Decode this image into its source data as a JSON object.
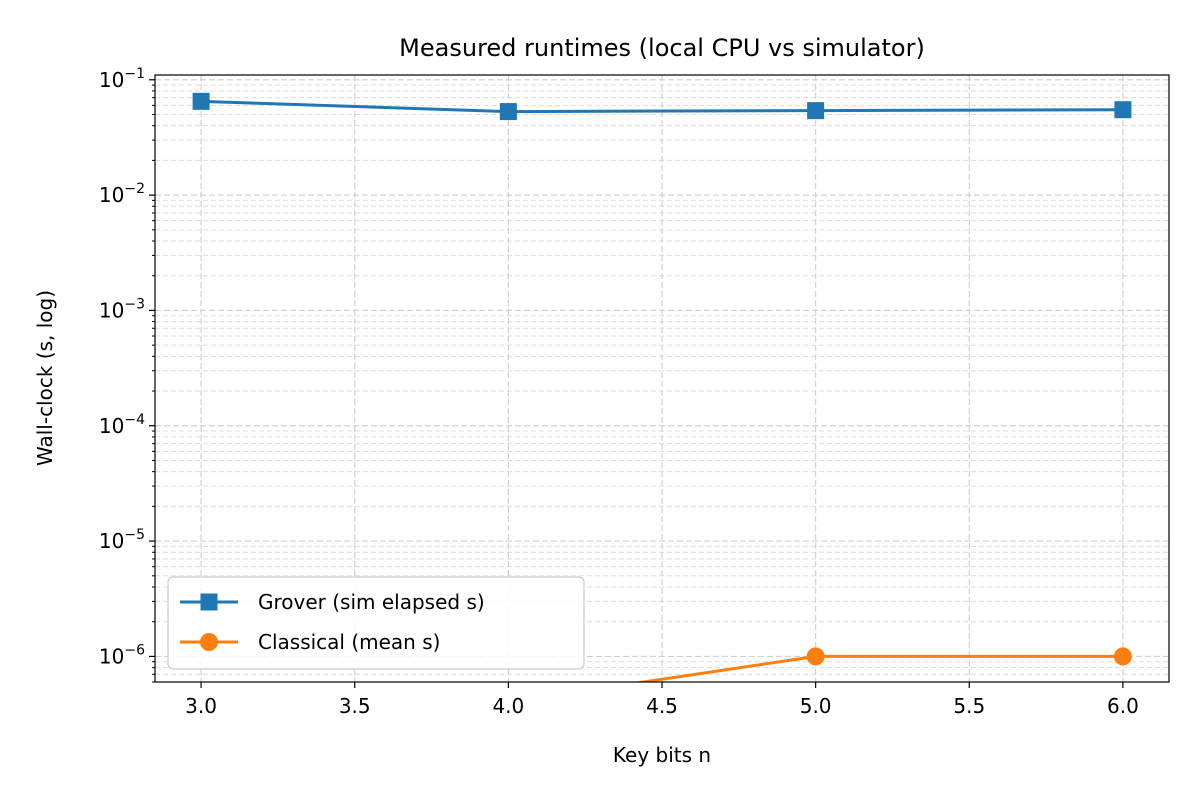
{
  "chart_data": {
    "type": "line",
    "title": "Measured runtimes (local CPU vs simulator)",
    "xlabel": "Key bits n",
    "ylabel": "Wall-clock (s, log)",
    "yscale": "log",
    "xlim": [
      2.85,
      6.15
    ],
    "ylim": [
      6e-07,
      0.11
    ],
    "xticks": [
      3.0,
      3.5,
      4.0,
      4.5,
      5.0,
      5.5,
      6.0
    ],
    "xtick_labels": [
      "3.0",
      "3.5",
      "4.0",
      "4.5",
      "5.0",
      "5.5",
      "6.0"
    ],
    "yticks": [
      1e-06,
      1e-05,
      0.0001,
      0.001,
      0.01,
      0.1
    ],
    "ytick_bases": [
      "10",
      "10",
      "10",
      "10",
      "10",
      "10"
    ],
    "ytick_exponents": [
      "−6",
      "−5",
      "−4",
      "−3",
      "−2",
      "−1"
    ],
    "grid": true,
    "legend_position": "lower-left",
    "series": [
      {
        "name": "Grover (sim elapsed s)",
        "color": "#1f77b4",
        "marker": "square",
        "x": [
          3,
          4,
          5,
          6
        ],
        "y": [
          0.065,
          0.053,
          0.054,
          0.055
        ]
      },
      {
        "name": "Classical (mean s)",
        "color": "#ff7f0e",
        "marker": "circle",
        "x": [
          4,
          5,
          6
        ],
        "y": [
          0,
          1e-06,
          1e-06
        ]
      }
    ]
  }
}
